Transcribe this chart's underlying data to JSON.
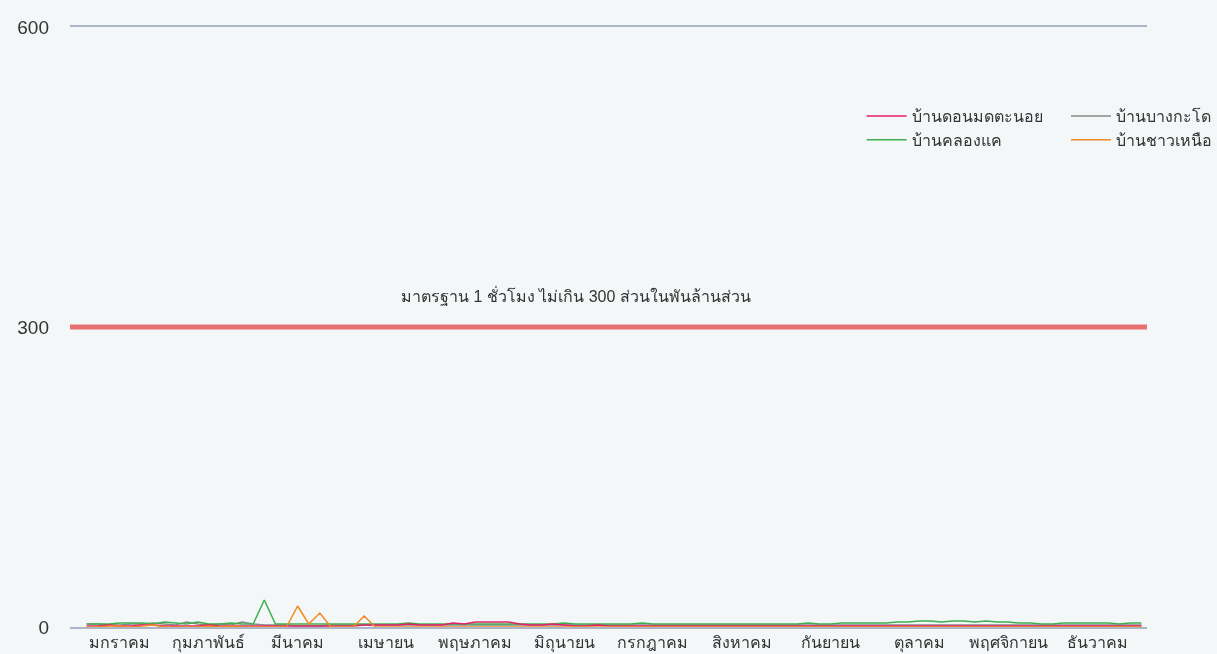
{
  "chart_data": {
    "type": "line",
    "categories": [
      null,
      null,
      null,
      "มกราคม",
      null,
      null,
      null,
      null,
      null,
      null,
      null,
      "กุมภาพันธ์",
      null,
      null,
      null,
      null,
      null,
      null,
      null,
      "มีนาคม",
      null,
      null,
      null,
      null,
      null,
      null,
      null,
      "เมษายน",
      null,
      null,
      null,
      null,
      null,
      null,
      null,
      "พฤษภาคม",
      null,
      null,
      null,
      null,
      null,
      null,
      null,
      "มิถุนายน",
      null,
      null,
      null,
      null,
      null,
      null,
      null,
      "กรกฎาคม",
      null,
      null,
      null,
      null,
      null,
      null,
      null,
      "สิงหาคม",
      null,
      null,
      null,
      null,
      null,
      null,
      null,
      "กันยายน",
      null,
      null,
      null,
      null,
      null,
      null,
      null,
      "ตุลาคม",
      null,
      null,
      null,
      null,
      null,
      null,
      null,
      "พฤศจิกายน",
      null,
      null,
      null,
      null,
      null,
      null,
      null,
      "ธันวาคม",
      null,
      null,
      null,
      null
    ],
    "series": [
      {
        "name": "บ้านดอนมดตะนอย",
        "color": "#e91e63",
        "values": [
          1,
          1,
          2,
          1,
          1,
          2,
          2,
          1,
          1,
          1,
          1,
          2,
          1,
          1,
          1,
          1,
          1,
          1,
          1,
          1,
          1,
          1,
          1,
          1,
          1,
          2,
          2,
          2,
          2,
          3,
          2,
          2,
          2,
          4,
          3,
          5,
          5,
          5,
          5,
          3,
          2,
          2,
          3,
          2,
          1,
          1,
          2,
          1,
          1,
          1,
          1,
          1,
          1,
          1,
          1,
          1,
          1,
          1,
          1,
          1,
          1,
          1,
          1,
          1,
          1,
          1,
          1,
          1,
          1,
          1,
          1,
          1,
          1,
          1,
          1,
          1,
          1,
          1,
          1,
          1,
          1,
          1,
          1,
          1,
          1,
          1,
          1,
          1,
          1,
          1,
          1,
          1,
          1,
          1,
          1,
          1
        ]
      },
      {
        "name": "บ้านบางกะโด",
        "color": "#8a8a8a",
        "values": [
          3,
          3,
          2,
          2,
          3,
          3,
          4,
          3,
          2,
          5,
          3,
          2,
          3,
          2,
          5,
          3,
          2,
          2,
          2,
          1,
          1,
          1,
          2,
          2,
          2,
          2,
          2,
          2,
          2,
          2,
          2,
          2,
          2,
          2,
          2,
          2,
          2,
          2,
          2,
          2,
          2,
          2,
          2,
          2,
          2,
          2,
          2,
          2,
          2,
          2,
          2,
          2,
          2,
          2,
          2,
          2,
          2,
          2,
          2,
          2,
          2,
          2,
          2,
          2,
          2,
          2,
          2,
          2,
          2,
          2,
          2,
          2,
          2,
          2,
          2,
          2,
          2,
          2,
          2,
          2,
          2,
          2,
          2,
          2,
          2,
          2,
          2,
          2,
          2,
          2,
          2,
          2,
          2,
          2,
          2,
          2
        ]
      },
      {
        "name": "บ้านคลองแค",
        "color": "#3cb04e",
        "values": [
          3,
          3,
          3,
          4,
          4,
          4,
          3,
          5,
          4,
          3,
          5,
          3,
          3,
          4,
          3,
          3,
          27,
          3,
          3,
          3,
          3,
          3,
          3,
          3,
          3,
          3,
          3,
          3,
          3,
          4,
          3,
          3,
          3,
          3,
          3,
          3,
          3,
          3,
          3,
          3,
          3,
          3,
          3,
          4,
          3,
          3,
          3,
          3,
          3,
          3,
          4,
          3,
          3,
          3,
          3,
          3,
          3,
          3,
          3,
          3,
          3,
          3,
          3,
          3,
          3,
          4,
          3,
          3,
          4,
          4,
          4,
          4,
          4,
          5,
          5,
          6,
          6,
          5,
          6,
          6,
          5,
          6,
          5,
          5,
          4,
          4,
          3,
          3,
          4,
          4,
          4,
          4,
          4,
          3,
          4,
          4
        ]
      },
      {
        "name": "บ้านชาวเหนือ",
        "color": "#f08a24",
        "values": [
          0,
          0,
          1,
          1,
          0,
          1,
          2,
          0,
          0,
          0,
          0,
          1,
          0,
          1,
          0,
          0,
          0,
          0,
          0,
          21,
          3,
          14,
          0,
          0,
          0,
          11,
          0,
          0,
          0,
          0,
          0,
          0,
          0,
          0,
          0,
          0,
          0,
          0,
          0,
          0,
          0,
          0,
          0,
          0,
          0,
          0,
          0,
          0,
          0,
          0,
          0,
          0,
          0,
          0,
          0,
          0,
          0,
          0,
          0,
          0,
          0,
          0,
          0,
          0,
          0,
          0,
          0,
          0,
          0,
          0,
          0,
          0,
          0,
          0,
          0,
          0,
          0,
          0,
          0,
          0,
          0,
          0,
          0,
          0,
          0,
          0,
          0,
          0,
          0,
          0,
          0,
          0,
          0,
          0,
          0,
          0
        ]
      }
    ],
    "ylim": [
      0,
      600
    ],
    "yticks": [
      0,
      300,
      600
    ],
    "legend": "top right",
    "marker": "none",
    "line_style": "solid",
    "ref_lines": [
      {
        "axis": "y",
        "value": 300,
        "label": "มาตรฐาน 1 ชั่วโมง ไม่เกิน 300 ส่วนในพันล้านส่วน",
        "color": "#e87070"
      }
    ]
  }
}
